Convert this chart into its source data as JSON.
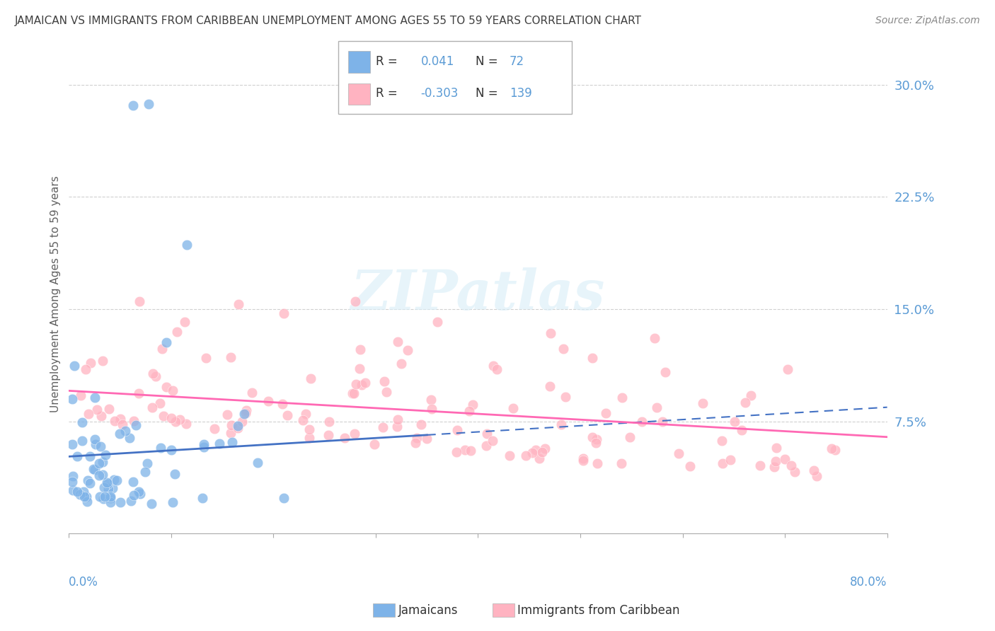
{
  "title": "JAMAICAN VS IMMIGRANTS FROM CARIBBEAN UNEMPLOYMENT AMONG AGES 55 TO 59 YEARS CORRELATION CHART",
  "source": "Source: ZipAtlas.com",
  "ylabel": "Unemployment Among Ages 55 to 59 years",
  "xlim": [
    0.0,
    0.8
  ],
  "ylim": [
    0.0,
    0.32
  ],
  "yticks": [
    0.075,
    0.15,
    0.225,
    0.3
  ],
  "ytick_labels": [
    "7.5%",
    "15.0%",
    "22.5%",
    "30.0%"
  ],
  "watermark": "ZIPatlas",
  "jam_color": "#7eb3e8",
  "jam_trend_color": "#4472c4",
  "car_color": "#ffb3c1",
  "car_trend_color": "#ff69b4",
  "background_color": "#ffffff",
  "grid_color": "#d0d0d0",
  "title_color": "#404040",
  "axis_color": "#5b9bd5",
  "R_jam": 0.041,
  "N_jam": 72,
  "R_car": -0.303,
  "N_car": 139
}
